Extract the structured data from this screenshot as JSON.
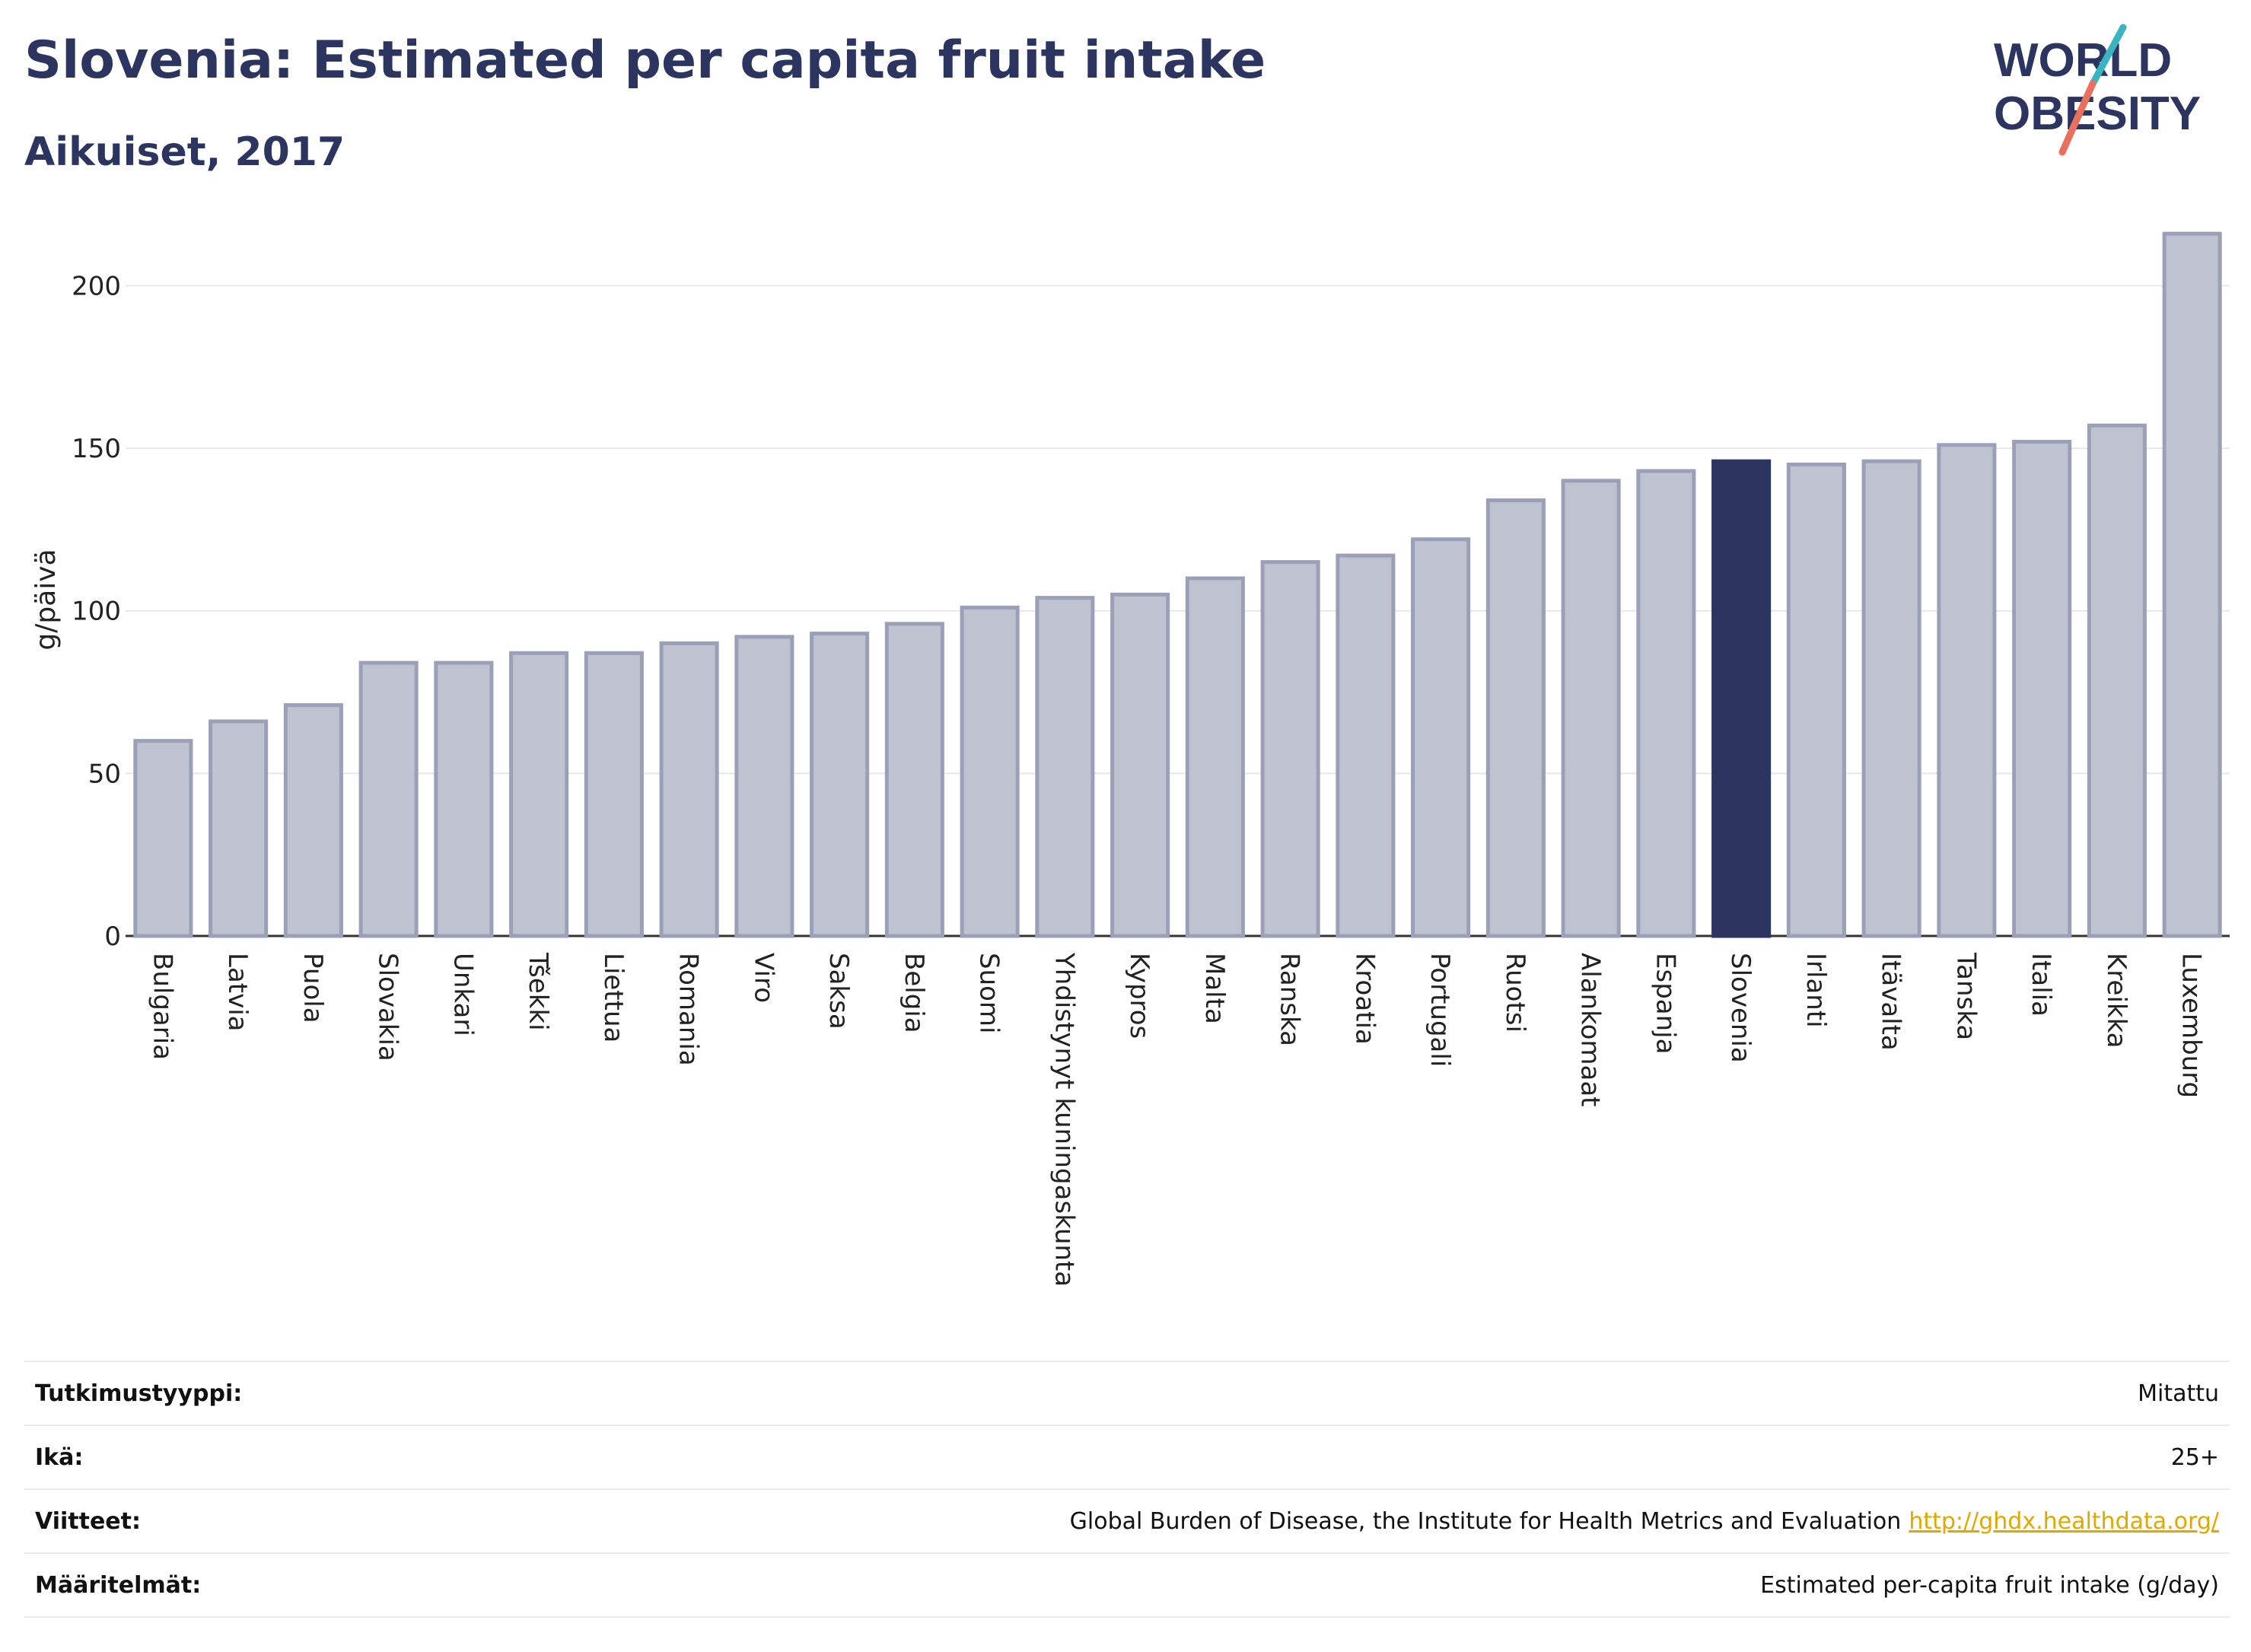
{
  "header": {
    "title": "Slovenia: Estimated per capita fruit intake",
    "subtitle": "Aikuiset, 2017"
  },
  "logo": {
    "line1": "WORLD",
    "line2": "OBESITY",
    "colors": {
      "text": "#2b3560",
      "slash_teal": "#3bb4c1",
      "slash_red": "#e8705c"
    }
  },
  "colors": {
    "bar": "#bfc3d0",
    "bar_border": "#9aa0b8",
    "highlight": "#2b3560",
    "grid": "#e6e8ee"
  },
  "chart_data": {
    "type": "bar",
    "ylabel": "g/päivä",
    "ylim": [
      0,
      220
    ],
    "yticks": [
      0,
      50,
      100,
      150,
      200
    ],
    "grid": true,
    "highlight": "Slovenia",
    "categories": [
      "Bulgaria",
      "Latvia",
      "Puola",
      "Slovakia",
      "Unkari",
      "Tšekki",
      "Liettua",
      "Romania",
      "Viro",
      "Saksa",
      "Belgia",
      "Suomi",
      "Yhdistynyt kuningaskunta",
      "Kypros",
      "Malta",
      "Ranska",
      "Kroatia",
      "Portugali",
      "Ruotsi",
      "Alankomaat",
      "Espanja",
      "Slovenia",
      "Irlanti",
      "Itävalta",
      "Tanska",
      "Italia",
      "Kreikka",
      "Luxemburg"
    ],
    "values": [
      60,
      66,
      71,
      84,
      84,
      87,
      87,
      90,
      92,
      93,
      96,
      101,
      104,
      105,
      110,
      115,
      117,
      122,
      134,
      140,
      143,
      146,
      145,
      146,
      151,
      152,
      157,
      216
    ]
  },
  "meta": [
    {
      "label": "Tutkimustyyppi:",
      "value": "Mitattu"
    },
    {
      "label": "Ikä:",
      "value": "25+"
    },
    {
      "label": "Viitteet:",
      "value": "Global Burden of Disease, the Institute for Health Metrics and Evaluation",
      "link": "http://ghdx.healthdata.org/"
    },
    {
      "label": "Määritelmät:",
      "value": "Estimated per-capita fruit intake (g/day)"
    }
  ]
}
